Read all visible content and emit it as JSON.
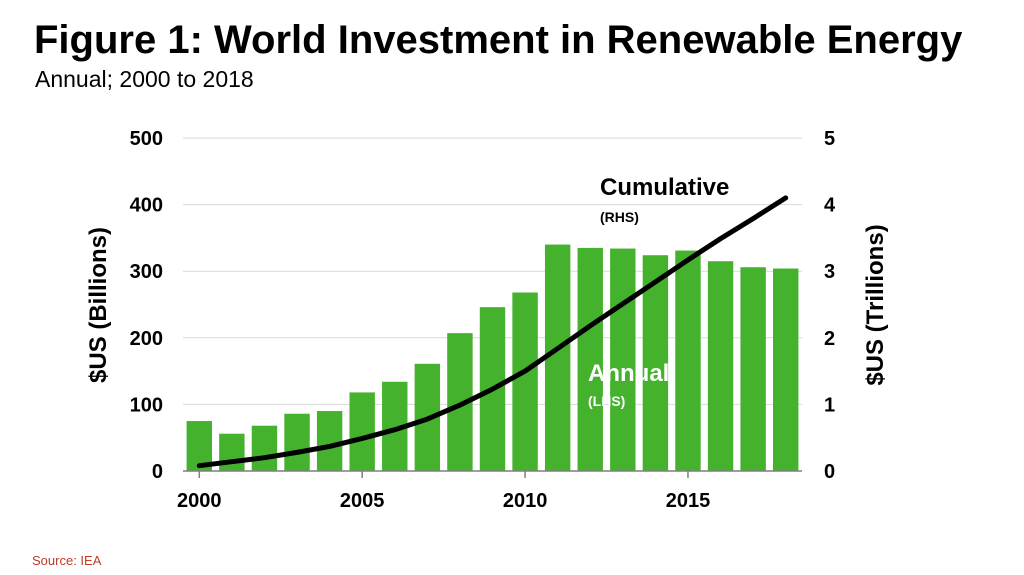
{
  "header": {
    "title": "Figure 1: World Investment in Renewable Energy",
    "subtitle": "Annual; 2000 to 2018"
  },
  "footer": {
    "source": "Source: IEA"
  },
  "colors": {
    "bar": "#45b22e",
    "line": "#000000",
    "grid": "#d9d9d9",
    "annual_label": "#ffffff"
  },
  "chart_data": {
    "type": "bar",
    "title": "Figure 1: World Investment in Renewable Energy",
    "subtitle": "Annual; 2000 to 2018",
    "x": [
      2000,
      2001,
      2002,
      2003,
      2004,
      2005,
      2006,
      2007,
      2008,
      2009,
      2010,
      2011,
      2012,
      2013,
      2014,
      2015,
      2016,
      2017,
      2018
    ],
    "x_ticks": [
      2000,
      2005,
      2010,
      2015
    ],
    "xlim": [
      1999.5,
      2018.5
    ],
    "series": [
      {
        "name": "Annual",
        "name_note": "(LHS)",
        "type": "bar",
        "axis": "left",
        "values": [
          75,
          56,
          68,
          86,
          90,
          118,
          134,
          161,
          207,
          246,
          268,
          340,
          335,
          334,
          324,
          331,
          315,
          306,
          304
        ]
      },
      {
        "name": "Cumulative",
        "name_note": "(RHS)",
        "type": "line",
        "axis": "right",
        "values": [
          0.08,
          0.14,
          0.2,
          0.28,
          0.37,
          0.49,
          0.62,
          0.78,
          0.99,
          1.23,
          1.5,
          1.84,
          2.18,
          2.51,
          2.84,
          3.17,
          3.49,
          3.79,
          4.1
        ]
      }
    ],
    "y_left": {
      "label": "$US (Billions)",
      "lim": [
        0,
        500
      ],
      "ticks": [
        0,
        100,
        200,
        300,
        400,
        500
      ]
    },
    "y_right": {
      "label": "$US (Trillions)",
      "lim": [
        0,
        5
      ],
      "ticks": [
        0,
        1,
        2,
        3,
        4,
        5
      ]
    },
    "grid": true,
    "legend": "inline labels"
  }
}
